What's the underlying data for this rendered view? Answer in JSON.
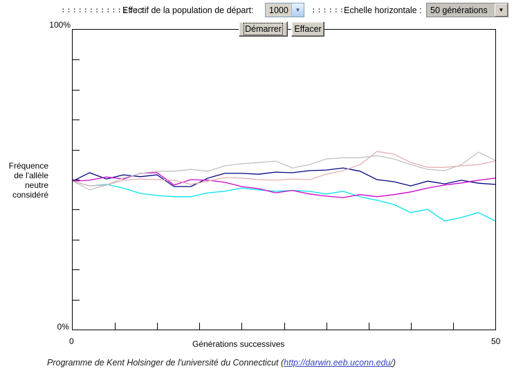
{
  "toolbar": {
    "dots_long": ":::::::::::::::",
    "population_label": "Effectif de la population de départ:",
    "population_value": "1000",
    "dots_short": "::::::",
    "scale_label": "Echelle horizontale :",
    "scale_value": "50 générations",
    "dropdown_arrow": "▼"
  },
  "buttons": {
    "start": "Démarrer",
    "clear": "Effacer"
  },
  "axes": {
    "y_top": "100%",
    "y_bottom": "0%",
    "x_left": "0",
    "x_right": "50",
    "x_title": "Générations successives",
    "y_title_lines": [
      "Fréquence",
      "de l'allèle",
      "neutre",
      "considéré"
    ]
  },
  "footer": {
    "prefix": "Programme de Kent Holsinger de l'université du Connecticut (",
    "link": "http://darwin.eeb.uconn.edu/",
    "suffix": ")"
  },
  "chart_data": {
    "type": "line",
    "title": "",
    "xlabel": "Générations successives",
    "ylabel": "Fréquence de l'allèle neutre considéré",
    "xlim": [
      0,
      50
    ],
    "ylim": [
      0,
      100
    ],
    "x_tick_step": 5,
    "y_tick_step": 10,
    "tick_len": 10,
    "grid": false,
    "legend": "none",
    "x": [
      0,
      2,
      4,
      6,
      8,
      10,
      12,
      14,
      16,
      18,
      20,
      22,
      24,
      26,
      28,
      30,
      32,
      34,
      36,
      38,
      40,
      42,
      44,
      46,
      48,
      50
    ],
    "series": [
      {
        "name": "population-1-navy",
        "color": "#000080",
        "values": [
          49.5,
          52.3,
          50.2,
          51.6,
          51.0,
          51.6,
          47.7,
          47.7,
          50.5,
          52.1,
          52.1,
          51.8,
          52.5,
          52.3,
          53.0,
          53.2,
          53.9,
          52.8,
          50.0,
          49.3,
          47.9,
          49.5,
          48.6,
          49.8,
          48.8,
          48.4
        ]
      },
      {
        "name": "population-2-cyan",
        "color": "#00e0ee",
        "values": [
          49.5,
          47.9,
          48.4,
          47.2,
          45.4,
          44.7,
          44.3,
          44.3,
          45.6,
          46.1,
          47.2,
          46.6,
          46.1,
          46.4,
          46.1,
          45.2,
          46.1,
          44.3,
          43.1,
          41.7,
          39.0,
          40.1,
          36.2,
          37.4,
          39.0,
          36.2
        ]
      },
      {
        "name": "population-3-magenta",
        "color": "#cc00cc",
        "values": [
          49.5,
          49.8,
          50.9,
          50.2,
          52.1,
          52.3,
          48.2,
          50.0,
          49.8,
          49.1,
          47.7,
          47.0,
          45.6,
          46.4,
          45.2,
          44.5,
          44.0,
          45.0,
          44.3,
          45.0,
          45.9,
          47.2,
          48.2,
          48.9,
          49.8,
          50.5
        ]
      },
      {
        "name": "population-4-pink",
        "color": "#e2aeb2",
        "values": [
          49.5,
          47.9,
          48.2,
          49.8,
          50.2,
          50.0,
          49.8,
          48.4,
          49.5,
          50.7,
          50.5,
          50.0,
          49.8,
          50.2,
          50.0,
          51.8,
          53.0,
          55.0,
          59.4,
          58.5,
          55.7,
          54.1,
          54.1,
          54.6,
          55.0,
          56.2
        ]
      },
      {
        "name": "population-5-gray",
        "color": "#c0c0c0",
        "values": [
          49.5,
          46.6,
          48.2,
          50.5,
          52.0,
          52.8,
          52.8,
          53.4,
          52.8,
          54.6,
          55.3,
          55.7,
          56.2,
          53.9,
          55.0,
          56.9,
          57.3,
          57.3,
          58.0,
          56.9,
          55.0,
          53.4,
          53.0,
          55.0,
          59.2,
          56.4
        ]
      }
    ]
  }
}
